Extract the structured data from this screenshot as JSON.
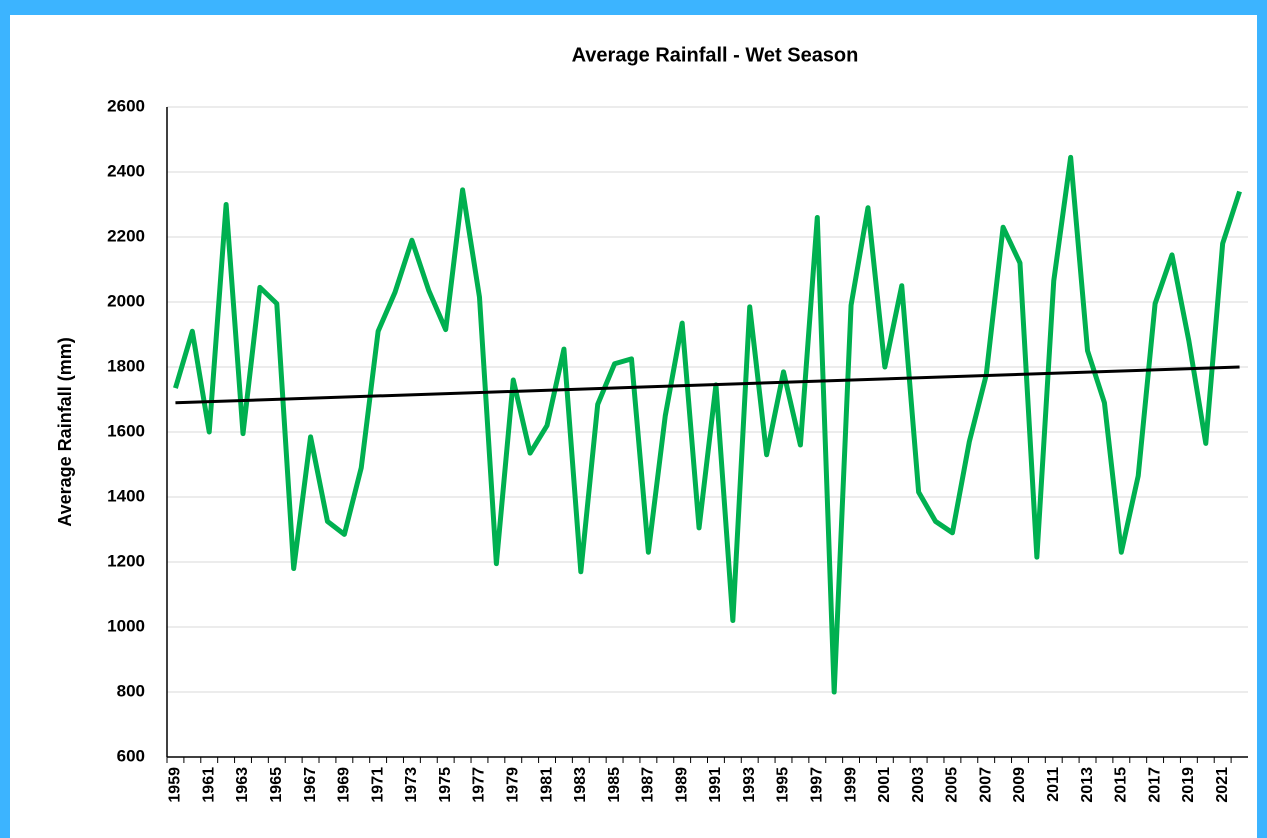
{
  "chart_data": {
    "type": "line",
    "title": "Average Rainfall - Wet Season",
    "y_label": "Average Rainfall (mm)",
    "categories": [
      "1959",
      null,
      "1961",
      null,
      "1963",
      null,
      "1965",
      null,
      "1967",
      null,
      "1969",
      null,
      "1971",
      null,
      "1973",
      null,
      "1975",
      null,
      "1977",
      null,
      "1979",
      null,
      "1981",
      null,
      "1983",
      null,
      "1985",
      null,
      "1987",
      null,
      "1989",
      null,
      "1991",
      null,
      "1993",
      null,
      "1995",
      null,
      "1997",
      null,
      "1999",
      null,
      "2001",
      null,
      "2003",
      null,
      "2005",
      null,
      "2007",
      null,
      "2009",
      null,
      "2011",
      null,
      "2013",
      null,
      "2015",
      null,
      "2017",
      null,
      "2019",
      null,
      "2021",
      null
    ],
    "values": [
      1735,
      1910,
      1600,
      2300,
      1595,
      2045,
      1995,
      1180,
      1585,
      1325,
      1285,
      1490,
      1910,
      2030,
      2190,
      2035,
      1915,
      2345,
      2015,
      1195,
      1760,
      1535,
      1620,
      1855,
      1170,
      1685,
      1810,
      1825,
      1230,
      1650,
      1935,
      1305,
      1745,
      1020,
      1985,
      1530,
      1785,
      1560,
      2260,
      800,
      1990,
      2290,
      1800,
      2050,
      1415,
      1325,
      1290,
      1570,
      1775,
      2230,
      2120,
      1215,
      2065,
      2445,
      1850,
      1690,
      1230,
      1465,
      1995,
      2145,
      1880,
      1565,
      2180,
      2340
    ],
    "color": "#00b050",
    "trendline": {
      "start": 1690,
      "end": 1800,
      "color": "#000000"
    },
    "ylim": [
      600,
      2600
    ],
    "yticks": [
      600,
      800,
      1000,
      1200,
      1400,
      1600,
      1800,
      2000,
      2200,
      2400,
      2600
    ],
    "grid": true
  }
}
